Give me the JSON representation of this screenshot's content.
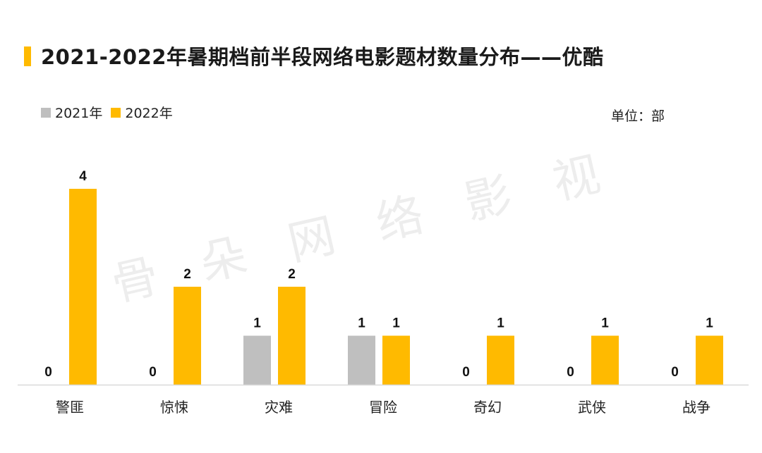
{
  "title": "2021-2022年暑期档前半段网络电影题材数量分布——优酷",
  "unit_label": "单位：部",
  "watermark": "骨 朵 网 络 影 视",
  "colors": {
    "series_2021": "#BFBFBF",
    "series_2022": "#FFBA00",
    "title_bar": "#FFBA00"
  },
  "chart_data": {
    "type": "bar",
    "categories": [
      "警匪",
      "惊悚",
      "灾难",
      "冒险",
      "奇幻",
      "武侠",
      "战争"
    ],
    "series": [
      {
        "name": "2021年",
        "values": [
          0,
          0,
          1,
          1,
          0,
          0,
          0
        ],
        "color": "#BFBFBF"
      },
      {
        "name": "2022年",
        "values": [
          4,
          2,
          2,
          1,
          1,
          1,
          1
        ],
        "color": "#FFBA00"
      }
    ],
    "ylim": [
      0,
      4
    ],
    "legend": "top-left",
    "grid": false
  }
}
